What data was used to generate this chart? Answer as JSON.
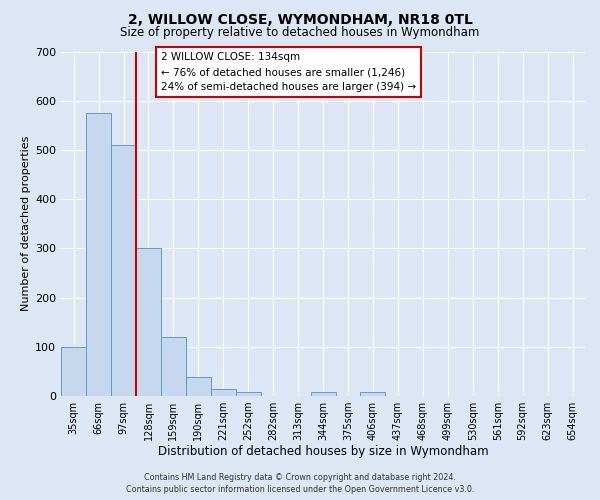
{
  "title": "2, WILLOW CLOSE, WYMONDHAM, NR18 0TL",
  "subtitle": "Size of property relative to detached houses in Wymondham",
  "xlabel": "Distribution of detached houses by size in Wymondham",
  "ylabel": "Number of detached properties",
  "bar_labels": [
    "35sqm",
    "66sqm",
    "97sqm",
    "128sqm",
    "159sqm",
    "190sqm",
    "221sqm",
    "252sqm",
    "282sqm",
    "313sqm",
    "344sqm",
    "375sqm",
    "406sqm",
    "437sqm",
    "468sqm",
    "499sqm",
    "530sqm",
    "561sqm",
    "592sqm",
    "623sqm",
    "654sqm"
  ],
  "bar_values": [
    100,
    575,
    510,
    300,
    120,
    38,
    15,
    8,
    0,
    0,
    8,
    0,
    8,
    0,
    0,
    0,
    0,
    0,
    0,
    0,
    0
  ],
  "bar_color": "#c5d8ed",
  "bar_edge_color": "#5a9dc8",
  "vline_x_idx": 2.5,
  "vline_color": "#cc0000",
  "ylim": [
    0,
    700
  ],
  "yticks": [
    0,
    100,
    200,
    300,
    400,
    500,
    600,
    700
  ],
  "annotation_title": "2 WILLOW CLOSE: 134sqm",
  "annotation_line1": "← 76% of detached houses are smaller (1,246)",
  "annotation_line2": "24% of semi-detached houses are larger (394) →",
  "annotation_box_color": "#cc0000",
  "footer_line1": "Contains HM Land Registry data © Crown copyright and database right 2024.",
  "footer_line2": "Contains public sector information licensed under the Open Government Licence v3.0.",
  "bg_color": "#dce6f5",
  "plot_bg_color": "#dce6f5",
  "grid_color": "#ffffff"
}
